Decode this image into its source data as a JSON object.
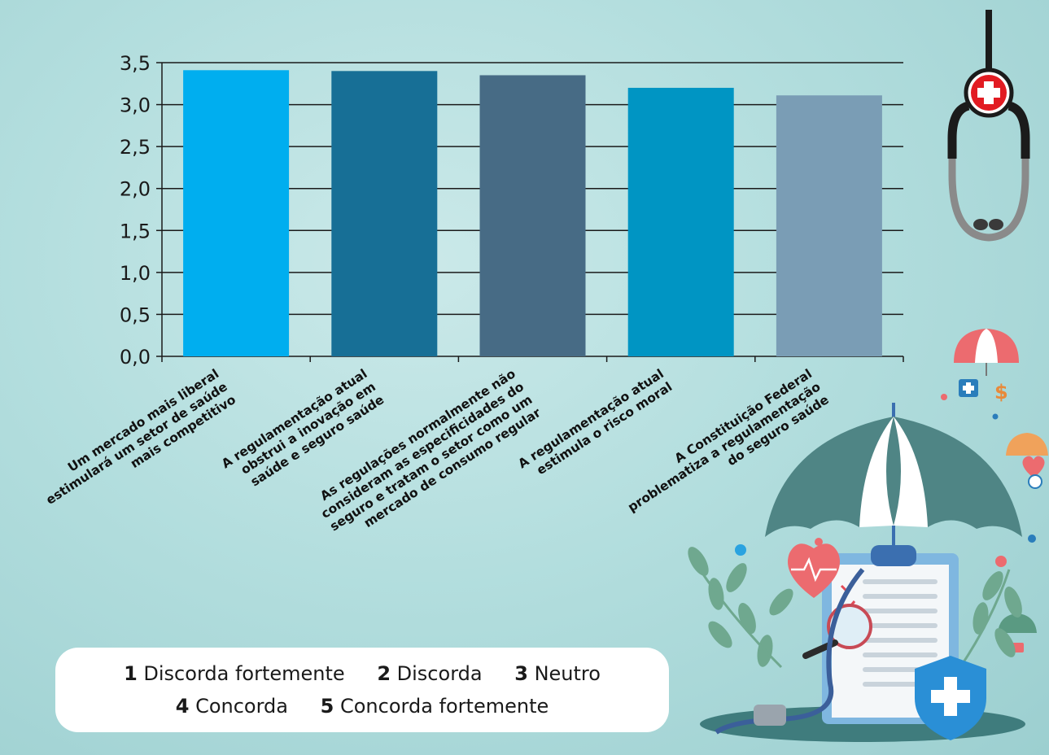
{
  "chart_data": {
    "type": "bar",
    "categories": [
      [
        "Um mercado mais liberal",
        "estimulará um setor de saúde",
        "mais competitivo"
      ],
      [
        "A regulamentação atual",
        "obstrui a inovação em",
        "saúde e seguro saúde"
      ],
      [
        "As regulações normalmente não",
        "consideram as especificidades do",
        "seguro e tratam o setor como um",
        "mercado de consumo regular"
      ],
      [
        "A regulamentação atual",
        "estimula o risco moral"
      ],
      [
        "A Constituição Federal",
        "problematiza a regulamentação",
        "do seguro saúde"
      ]
    ],
    "values": [
      3.41,
      3.4,
      3.35,
      3.2,
      3.11
    ],
    "bar_colors": [
      "#00aeef",
      "#176f96",
      "#476b85",
      "#0095c3",
      "#7a9db5"
    ],
    "ylim": [
      0,
      3.5
    ],
    "yticks": [
      "0,0",
      "0,5",
      "1,0",
      "1,5",
      "2,0",
      "2,5",
      "3,0",
      "3,5"
    ],
    "grid": true
  },
  "legend": {
    "items": [
      {
        "num": "1",
        "label": "Discorda fortemente"
      },
      {
        "num": "2",
        "label": "Discorda"
      },
      {
        "num": "3",
        "label": "Neutro"
      },
      {
        "num": "4",
        "label": "Concorda"
      },
      {
        "num": "5",
        "label": "Concorda fortemente"
      }
    ]
  },
  "decor": {
    "icons": [
      "stethoscope-icon",
      "umbrella-icon",
      "medical-kit-icon",
      "dollar-icon",
      "heart-icon",
      "clock-icon",
      "clipboard-icon",
      "magnifier-icon",
      "shield-cross-icon",
      "leaf-branch-icon"
    ],
    "dollar_sign": "$"
  }
}
